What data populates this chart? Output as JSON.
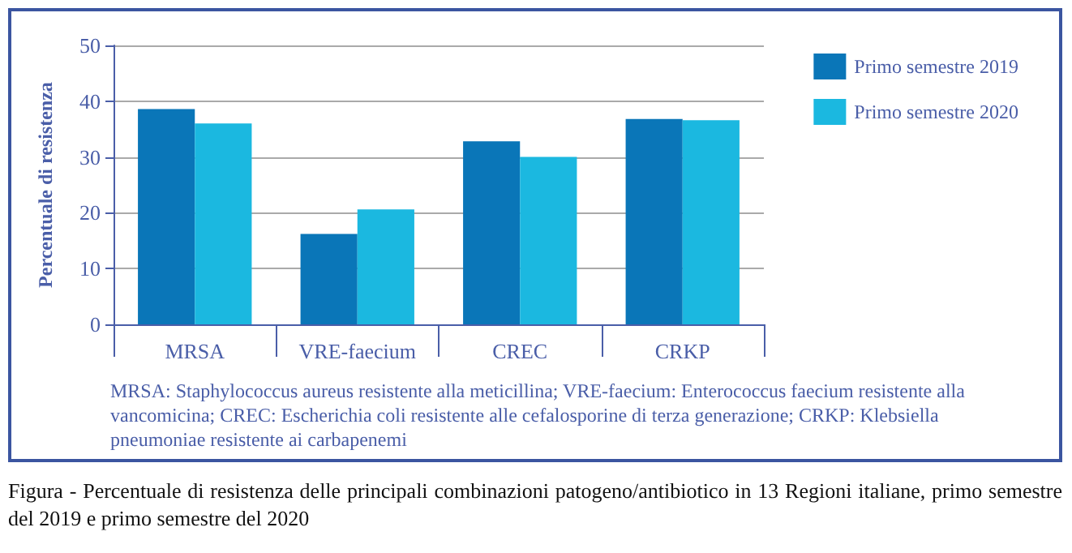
{
  "chart_data": {
    "type": "bar",
    "ylabel": "Percentuale di resistenza",
    "categories": [
      "MRSA",
      "VRE-faecium",
      "CREC",
      "CRKP"
    ],
    "series": [
      {
        "name": "Primo semestre 2019",
        "color": "#0a76b8",
        "values": [
          38.6,
          16.2,
          32.8,
          36.8
        ]
      },
      {
        "name": "Primo semestre 2020",
        "color": "#1bb8e0",
        "values": [
          36.0,
          20.6,
          30.0,
          36.6
        ]
      }
    ],
    "ylim": [
      0,
      50
    ],
    "yticks": [
      0,
      10,
      20,
      30,
      40,
      50
    ],
    "grid": "y",
    "legend": "top right",
    "annotations": [
      "MRSA: Staphylococcus aureus resistente alla meticillina; VRE-faecium: Enterococcus faecium resistente alla vancomicina; CREC: Escherichia coli resistente alle cefalosporine di terza generazione; CRKP: Klebsiella pneumoniae resistente ai carbapenemi",
      "Figura - Percentuale di resistenza delle principali combinazioni patogeno/antibiotico in 13 Regioni italiane, primo semestre del 2019 e primo semestre del 2020"
    ]
  }
}
